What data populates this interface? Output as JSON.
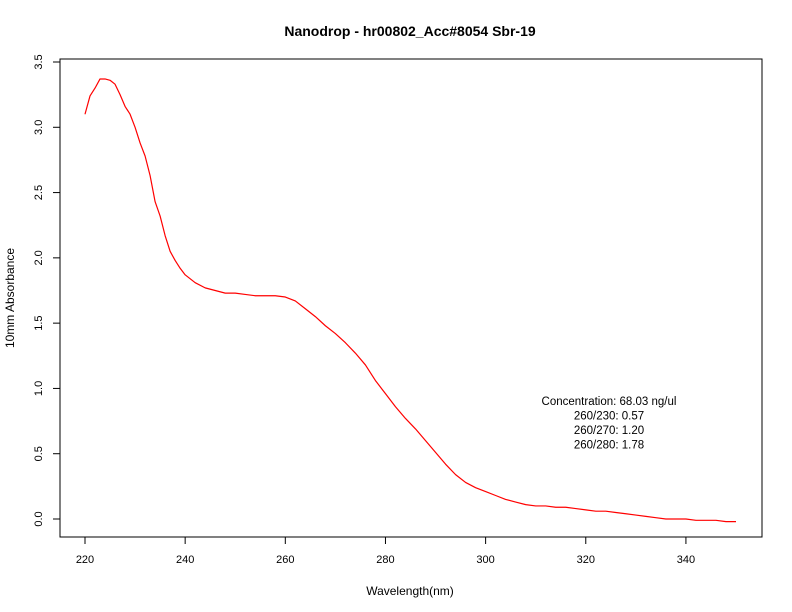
{
  "chart_data": {
    "type": "line",
    "title": "Nanodrop - hr00802_Acc#8054 Sbr-19",
    "xlabel": "Wavelength(nm)",
    "ylabel": "10mm Absorbance",
    "xlim": [
      220,
      350
    ],
    "ylim": [
      -0.1,
      3.5
    ],
    "x_ticks": [
      220,
      240,
      260,
      280,
      300,
      320,
      340
    ],
    "y_ticks": [
      0.0,
      0.5,
      1.0,
      1.5,
      2.0,
      2.5,
      3.0,
      3.5
    ],
    "x_tick_labels": [
      "220",
      "240",
      "260",
      "280",
      "300",
      "320",
      "340"
    ],
    "y_tick_labels": [
      "0.0",
      "0.5",
      "1.0",
      "1.5",
      "2.0",
      "2.5",
      "3.0",
      "3.5"
    ],
    "grid": false,
    "series": [
      {
        "color": "#ff0000",
        "x": [
          220,
          221,
          222,
          223,
          224,
          225,
          226,
          227,
          228,
          229,
          230,
          231,
          232,
          233,
          234,
          235,
          236,
          237,
          238,
          239,
          240,
          242,
          244,
          246,
          248,
          250,
          252,
          254,
          256,
          258,
          260,
          262,
          264,
          266,
          268,
          270,
          272,
          274,
          276,
          278,
          280,
          282,
          284,
          286,
          288,
          290,
          292,
          294,
          296,
          298,
          300,
          302,
          304,
          306,
          308,
          310,
          312,
          314,
          316,
          318,
          320,
          322,
          324,
          326,
          328,
          330,
          332,
          334,
          336,
          338,
          340,
          342,
          344,
          346,
          348,
          350
        ],
        "y": [
          3.1,
          3.24,
          3.3,
          3.37,
          3.37,
          3.36,
          3.33,
          3.25,
          3.16,
          3.1,
          3.0,
          2.88,
          2.78,
          2.63,
          2.43,
          2.32,
          2.17,
          2.05,
          1.98,
          1.92,
          1.87,
          1.81,
          1.77,
          1.75,
          1.73,
          1.73,
          1.72,
          1.71,
          1.71,
          1.71,
          1.7,
          1.67,
          1.61,
          1.55,
          1.48,
          1.42,
          1.35,
          1.27,
          1.18,
          1.06,
          0.96,
          0.86,
          0.77,
          0.69,
          0.6,
          0.51,
          0.42,
          0.34,
          0.28,
          0.24,
          0.21,
          0.18,
          0.15,
          0.13,
          0.11,
          0.1,
          0.1,
          0.09,
          0.09,
          0.08,
          0.07,
          0.06,
          0.06,
          0.05,
          0.04,
          0.03,
          0.02,
          0.01,
          0.0,
          0.0,
          0.0,
          -0.01,
          -0.01,
          -0.01,
          -0.02,
          -0.02
        ]
      }
    ],
    "annotations": [
      "Concentration: 68.03 ng/ul",
      "260/230: 0.57",
      "260/270: 1.20",
      "260/280: 1.78"
    ]
  }
}
